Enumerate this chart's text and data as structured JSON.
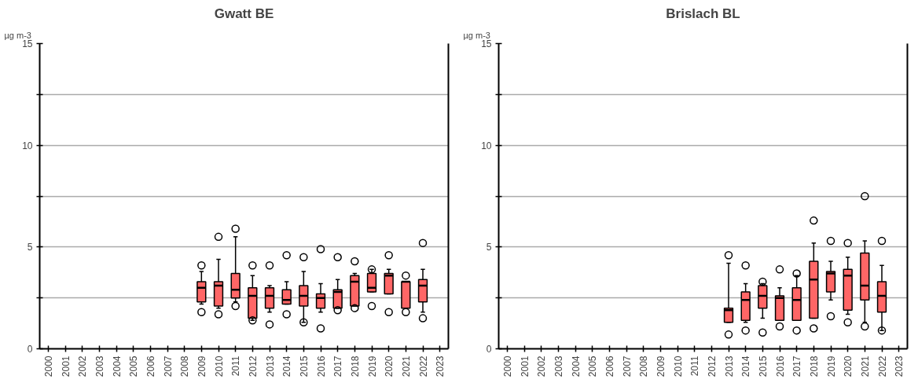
{
  "chart_data": [
    {
      "type": "box",
      "title": "Gwatt BE",
      "ylabel": "µg m-3",
      "categories": [
        "2000",
        "2001",
        "2002",
        "2003",
        "2004",
        "2005",
        "2006",
        "2007",
        "2008",
        "2009",
        "2010",
        "2011",
        "2012",
        "2013",
        "2014",
        "2015",
        "2016",
        "2017",
        "2018",
        "2019",
        "2020",
        "2021",
        "2022",
        "2023"
      ],
      "ylim": [
        0,
        15
      ],
      "yticks": [
        0,
        {
          "value": 2.5,
          "label": null
        },
        5,
        {
          "value": 7.5,
          "label": null
        },
        10,
        {
          "value": 12.5,
          "label": null
        },
        15
      ],
      "grid": "y",
      "series": [
        {
          "color": "#ff6666",
          "boxes": [
            null,
            null,
            null,
            null,
            null,
            null,
            null,
            null,
            null,
            {
              "low": 2.2,
              "q1": 2.3,
              "median": 3.0,
              "q3": 3.3,
              "high": 3.8,
              "outliers": [
                4.1,
                1.8
              ]
            },
            {
              "low": 2.0,
              "q1": 2.1,
              "median": 3.1,
              "q3": 3.3,
              "high": 4.4,
              "outliers": [
                5.5,
                1.7
              ]
            },
            {
              "low": 2.3,
              "q1": 2.5,
              "median": 2.9,
              "q3": 3.7,
              "high": 5.5,
              "outliers": [
                5.9,
                2.1
              ]
            },
            {
              "low": 1.4,
              "q1": 1.5,
              "median": 2.6,
              "q3": 3.0,
              "high": 3.6,
              "outliers": [
                4.1,
                1.4
              ]
            },
            {
              "low": 1.8,
              "q1": 2.0,
              "median": 2.6,
              "q3": 3.0,
              "high": 3.1,
              "outliers": [
                4.1,
                1.2
              ]
            },
            {
              "low": 2.2,
              "q1": 2.2,
              "median": 2.4,
              "q3": 2.9,
              "high": 3.3,
              "outliers": [
                4.6,
                1.7
              ]
            },
            {
              "low": 1.3,
              "q1": 2.1,
              "median": 2.6,
              "q3": 3.1,
              "high": 3.8,
              "outliers": [
                4.5,
                1.3
              ]
            },
            {
              "low": 1.8,
              "q1": 2.0,
              "median": 2.5,
              "q3": 2.7,
              "high": 3.2,
              "outliers": [
                4.9,
                1.0
              ]
            },
            {
              "low": 2.0,
              "q1": 2.0,
              "median": 2.8,
              "q3": 2.9,
              "high": 3.4,
              "outliers": [
                4.5,
                1.9
              ]
            },
            {
              "low": 2.1,
              "q1": 2.1,
              "median": 3.3,
              "q3": 3.6,
              "high": 3.7,
              "outliers": [
                4.3,
                2.0
              ]
            },
            {
              "low": 2.8,
              "q1": 2.8,
              "median": 3.0,
              "q3": 3.7,
              "high": 3.9,
              "outliers": [
                3.9,
                2.1
              ]
            },
            {
              "low": 2.7,
              "q1": 2.7,
              "median": 3.6,
              "q3": 3.7,
              "high": 3.9,
              "outliers": [
                4.6,
                1.8
              ]
            },
            {
              "low": 2.0,
              "q1": 2.0,
              "median": 3.3,
              "q3": 3.3,
              "high": 3.3,
              "outliers": [
                3.6,
                1.8
              ]
            },
            {
              "low": 1.8,
              "q1": 2.3,
              "median": 3.1,
              "q3": 3.4,
              "high": 3.9,
              "outliers": [
                5.2,
                1.5
              ]
            },
            null
          ]
        }
      ]
    },
    {
      "type": "box",
      "title": "Brislach BL",
      "ylabel": "µg m-3",
      "categories": [
        "2000",
        "2001",
        "2002",
        "2003",
        "2004",
        "2005",
        "2006",
        "2007",
        "2008",
        "2009",
        "2010",
        "2011",
        "2012",
        "2013",
        "2014",
        "2015",
        "2016",
        "2017",
        "2018",
        "2019",
        "2020",
        "2021",
        "2022",
        "2023"
      ],
      "ylim": [
        0,
        15
      ],
      "yticks": [
        0,
        {
          "value": 2.5,
          "label": null
        },
        5,
        {
          "value": 7.5,
          "label": null
        },
        10,
        {
          "value": 12.5,
          "label": null
        },
        15
      ],
      "grid": "y",
      "series": [
        {
          "color": "#ff6666",
          "boxes": [
            null,
            null,
            null,
            null,
            null,
            null,
            null,
            null,
            null,
            null,
            null,
            null,
            null,
            {
              "low": 1.3,
              "q1": 1.3,
              "median": 1.9,
              "q3": 2.0,
              "high": 4.2,
              "outliers": [
                4.6,
                0.7
              ]
            },
            {
              "low": 1.3,
              "q1": 1.4,
              "median": 2.4,
              "q3": 2.8,
              "high": 3.2,
              "outliers": [
                4.1,
                0.9
              ]
            },
            {
              "low": 1.5,
              "q1": 2.0,
              "median": 2.6,
              "q3": 3.1,
              "high": 3.2,
              "outliers": [
                3.3,
                0.8
              ]
            },
            {
              "low": 1.4,
              "q1": 1.4,
              "median": 2.5,
              "q3": 2.6,
              "high": 3.0,
              "outliers": [
                3.9,
                1.1
              ]
            },
            {
              "low": 1.4,
              "q1": 1.4,
              "median": 2.4,
              "q3": 3.0,
              "high": 3.6,
              "outliers": [
                3.7,
                0.9
              ]
            },
            {
              "low": 1.5,
              "q1": 1.5,
              "median": 3.4,
              "q3": 4.3,
              "high": 5.2,
              "outliers": [
                6.3,
                1.0
              ]
            },
            {
              "low": 2.4,
              "q1": 2.8,
              "median": 3.7,
              "q3": 3.8,
              "high": 4.3,
              "outliers": [
                5.3,
                1.6
              ]
            },
            {
              "low": 1.7,
              "q1": 1.9,
              "median": 3.6,
              "q3": 3.9,
              "high": 4.5,
              "outliers": [
                5.2,
                1.3
              ]
            },
            {
              "low": 1.3,
              "q1": 2.4,
              "median": 3.1,
              "q3": 4.7,
              "high": 5.3,
              "outliers": [
                7.5,
                1.1
              ]
            },
            {
              "low": 0.9,
              "q1": 1.8,
              "median": 2.6,
              "q3": 3.3,
              "high": 4.1,
              "outliers": [
                5.3,
                0.9
              ]
            },
            null
          ]
        }
      ]
    }
  ]
}
